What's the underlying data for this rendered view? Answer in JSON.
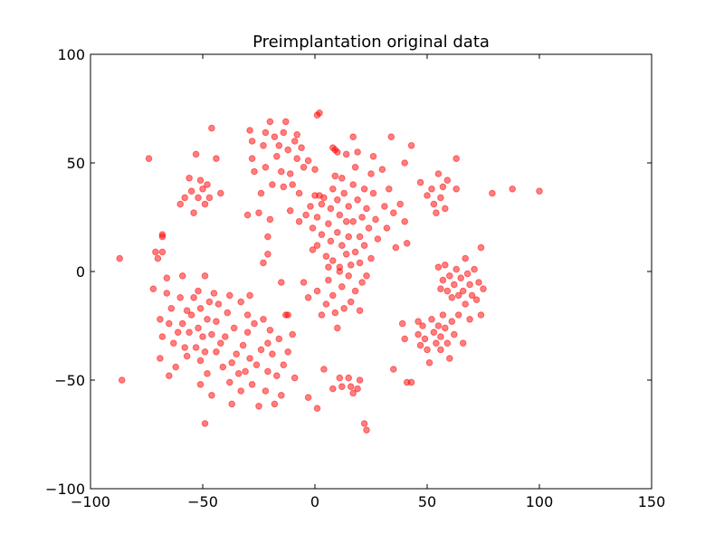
{
  "chart_data": {
    "type": "scatter",
    "title": "Preimplantation original data",
    "xlabel": "",
    "ylabel": "",
    "xlim": [
      -100,
      150
    ],
    "ylim": [
      -100,
      100
    ],
    "xticks": [
      -100,
      -50,
      0,
      50,
      100,
      150
    ],
    "yticks": [
      -100,
      -50,
      0,
      50,
      100
    ],
    "xtick_labels": [
      "−100",
      "−50",
      "0",
      "50",
      "100",
      "150"
    ],
    "ytick_labels": [
      "−100",
      "−50",
      "0",
      "50",
      "100"
    ],
    "grid": false,
    "marker_color": "#ff0000",
    "marker_opacity": 0.5,
    "points": [
      [
        -87,
        6
      ],
      [
        -86,
        -50
      ],
      [
        -74,
        52
      ],
      [
        -71,
        9
      ],
      [
        -70,
        6
      ],
      [
        -68,
        17
      ],
      [
        -68,
        16
      ],
      [
        -68,
        9
      ],
      [
        -72,
        -8
      ],
      [
        -69,
        -22
      ],
      [
        -68,
        -30
      ],
      [
        -69,
        -40
      ],
      [
        -66,
        -10
      ],
      [
        -66,
        -3
      ],
      [
        -65,
        -24
      ],
      [
        -65,
        -48
      ],
      [
        -64,
        -17
      ],
      [
        -63,
        -33
      ],
      [
        -62,
        -44
      ],
      [
        -61,
        -28
      ],
      [
        -60,
        -12
      ],
      [
        -59,
        -2
      ],
      [
        -59,
        -24
      ],
      [
        -58,
        -35
      ],
      [
        -57,
        -39
      ],
      [
        -57,
        -18
      ],
      [
        -56,
        -28
      ],
      [
        -55,
        -20
      ],
      [
        -54,
        -12
      ],
      [
        -53,
        -35
      ],
      [
        -52,
        -9
      ],
      [
        -52,
        -26
      ],
      [
        -51,
        -17
      ],
      [
        -51,
        -41
      ],
      [
        -51,
        -52
      ],
      [
        -50,
        -30
      ],
      [
        -49,
        -2
      ],
      [
        -49,
        -37
      ],
      [
        -48,
        -22
      ],
      [
        -48,
        -47
      ],
      [
        -47,
        -14
      ],
      [
        -46,
        -29
      ],
      [
        -46,
        -57
      ],
      [
        -45,
        -10
      ],
      [
        -44,
        -23
      ],
      [
        -44,
        -37
      ],
      [
        -43,
        -15
      ],
      [
        -42,
        -33
      ],
      [
        -41,
        -44
      ],
      [
        -40,
        -30
      ],
      [
        -39,
        -19
      ],
      [
        -38,
        -11
      ],
      [
        -38,
        -51
      ],
      [
        -37,
        -42
      ],
      [
        -37,
        -61
      ],
      [
        -36,
        -26
      ],
      [
        -35,
        -38
      ],
      [
        -34,
        -47
      ],
      [
        -33,
        -14
      ],
      [
        -33,
        -55
      ],
      [
        -32,
        -34
      ],
      [
        -31,
        -46
      ],
      [
        -30,
        -20
      ],
      [
        -30,
        -28
      ],
      [
        -29,
        -11
      ],
      [
        -29,
        -40
      ],
      [
        -28,
        -52
      ],
      [
        -27,
        -24
      ],
      [
        -26,
        -43
      ],
      [
        -25,
        -62
      ],
      [
        -24,
        -36
      ],
      [
        -23,
        -22
      ],
      [
        -22,
        -55
      ],
      [
        -21,
        -33
      ],
      [
        -21,
        -46
      ],
      [
        -20,
        -27
      ],
      [
        -19,
        -38
      ],
      [
        -18,
        -61
      ],
      [
        -17,
        -48
      ],
      [
        -16,
        -31
      ],
      [
        -15,
        -57
      ],
      [
        -14,
        -43
      ],
      [
        -13,
        -20
      ],
      [
        -12,
        -37
      ],
      [
        -10,
        -29
      ],
      [
        -9,
        -49
      ],
      [
        -60,
        31
      ],
      [
        -58,
        34
      ],
      [
        -56,
        43
      ],
      [
        -55,
        37
      ],
      [
        -54,
        27
      ],
      [
        -53,
        54
      ],
      [
        -52,
        34
      ],
      [
        -51,
        42
      ],
      [
        -50,
        38
      ],
      [
        -49,
        31
      ],
      [
        -48,
        40
      ],
      [
        -47,
        34
      ],
      [
        -46,
        66
      ],
      [
        -44,
        52
      ],
      [
        -42,
        36
      ],
      [
        -49,
        -70
      ],
      [
        -30,
        26
      ],
      [
        -29,
        65
      ],
      [
        -28,
        60
      ],
      [
        -27,
        46
      ],
      [
        -28,
        52
      ],
      [
        -25,
        27
      ],
      [
        -24,
        36
      ],
      [
        -23,
        58
      ],
      [
        -22,
        64
      ],
      [
        -22,
        48
      ],
      [
        -21,
        16
      ],
      [
        -21,
        8
      ],
      [
        -20,
        24
      ],
      [
        -20,
        69
      ],
      [
        -19,
        40
      ],
      [
        -18,
        62
      ],
      [
        -17,
        53
      ],
      [
        -16,
        58
      ],
      [
        -15,
        46
      ],
      [
        -14,
        39
      ],
      [
        -14,
        64
      ],
      [
        -13,
        69
      ],
      [
        -12,
        56
      ],
      [
        -11,
        28
      ],
      [
        -11,
        45
      ],
      [
        -10,
        40
      ],
      [
        -9,
        60
      ],
      [
        -8,
        63
      ],
      [
        -8,
        52
      ],
      [
        -7,
        23
      ],
      [
        -7,
        36
      ],
      [
        -6,
        57
      ],
      [
        -5,
        48
      ],
      [
        -4,
        26
      ],
      [
        -3,
        51
      ],
      [
        -2,
        30
      ],
      [
        -23,
        4
      ],
      [
        -15,
        -5
      ],
      [
        -12,
        -20
      ],
      [
        -3,
        -58
      ],
      [
        1,
        72
      ],
      [
        2,
        73
      ],
      [
        0,
        47
      ],
      [
        1,
        25
      ],
      [
        1,
        12
      ],
      [
        2,
        35
      ],
      [
        3,
        31
      ],
      [
        3,
        17
      ],
      [
        4,
        34
      ],
      [
        5,
        7
      ],
      [
        6,
        2
      ],
      [
        6,
        22
      ],
      [
        7,
        29
      ],
      [
        7,
        14
      ],
      [
        8,
        57
      ],
      [
        8,
        38
      ],
      [
        8,
        5
      ],
      [
        9,
        44
      ],
      [
        9,
        56
      ],
      [
        10,
        33
      ],
      [
        10,
        18
      ],
      [
        11,
        26
      ],
      [
        11,
        2
      ],
      [
        12,
        43
      ],
      [
        12,
        12
      ],
      [
        13,
        36
      ],
      [
        14,
        23
      ],
      [
        14,
        8
      ],
      [
        15,
        30
      ],
      [
        15,
        16
      ],
      [
        16,
        3
      ],
      [
        17,
        40
      ],
      [
        17,
        23
      ],
      [
        18,
        9
      ],
      [
        18,
        48
      ],
      [
        19,
        55
      ],
      [
        19,
        33
      ],
      [
        20,
        16
      ],
      [
        20,
        4
      ],
      [
        21,
        25
      ],
      [
        22,
        38
      ],
      [
        22,
        12
      ],
      [
        23,
        29
      ],
      [
        24,
        20
      ],
      [
        25,
        45
      ],
      [
        25,
        6
      ],
      [
        26,
        53
      ],
      [
        26,
        36
      ],
      [
        27,
        24
      ],
      [
        28,
        15
      ],
      [
        30,
        47
      ],
      [
        31,
        30
      ],
      [
        32,
        20
      ],
      [
        33,
        38
      ],
      [
        34,
        62
      ],
      [
        35,
        27
      ],
      [
        36,
        11
      ],
      [
        38,
        31
      ],
      [
        40,
        50
      ],
      [
        40,
        23
      ],
      [
        41,
        13
      ],
      [
        43,
        58
      ],
      [
        -5,
        -5
      ],
      [
        -3,
        -12
      ],
      [
        -1,
        10
      ],
      [
        1,
        -9
      ],
      [
        3,
        -20
      ],
      [
        5,
        -15
      ],
      [
        6,
        -4
      ],
      [
        8,
        -11
      ],
      [
        9,
        -19
      ],
      [
        10,
        -26
      ],
      [
        11,
        0
      ],
      [
        12,
        -7
      ],
      [
        13,
        -17
      ],
      [
        15,
        -2
      ],
      [
        16,
        -14
      ],
      [
        18,
        -9
      ],
      [
        20,
        -18
      ],
      [
        21,
        -5
      ],
      [
        23,
        -2
      ],
      [
        17,
        62
      ],
      [
        14,
        54
      ],
      [
        10,
        55
      ],
      [
        -1,
        20
      ],
      [
        0,
        35
      ],
      [
        4,
        -45
      ],
      [
        8,
        -54
      ],
      [
        11,
        -49
      ],
      [
        12,
        -53
      ],
      [
        15,
        -49
      ],
      [
        16,
        -53
      ],
      [
        17,
        -56
      ],
      [
        19,
        -54
      ],
      [
        20,
        -50
      ],
      [
        22,
        -70
      ],
      [
        23,
        -73
      ],
      [
        1,
        -63
      ],
      [
        35,
        -45
      ],
      [
        39,
        -24
      ],
      [
        40,
        -31
      ],
      [
        41,
        -51
      ],
      [
        43,
        -51
      ],
      [
        46,
        -23
      ],
      [
        46,
        -29
      ],
      [
        47,
        -34
      ],
      [
        48,
        -25
      ],
      [
        49,
        -31
      ],
      [
        50,
        -36
      ],
      [
        51,
        -42
      ],
      [
        52,
        -22
      ],
      [
        53,
        -28
      ],
      [
        54,
        -33
      ],
      [
        55,
        -25
      ],
      [
        56,
        -30
      ],
      [
        56,
        -36
      ],
      [
        57,
        -20
      ],
      [
        58,
        -26
      ],
      [
        59,
        -33
      ],
      [
        60,
        -40
      ],
      [
        61,
        -23
      ],
      [
        62,
        -29
      ],
      [
        64,
        -20
      ],
      [
        66,
        -33
      ],
      [
        69,
        -22
      ],
      [
        47,
        41
      ],
      [
        50,
        35
      ],
      [
        52,
        38
      ],
      [
        53,
        31
      ],
      [
        54,
        27
      ],
      [
        55,
        45
      ],
      [
        56,
        34
      ],
      [
        57,
        39
      ],
      [
        58,
        29
      ],
      [
        59,
        42
      ],
      [
        63,
        52
      ],
      [
        63,
        38
      ],
      [
        55,
        2
      ],
      [
        56,
        -8
      ],
      [
        57,
        -4
      ],
      [
        58,
        3
      ],
      [
        59,
        -9
      ],
      [
        60,
        -2
      ],
      [
        61,
        -12
      ],
      [
        62,
        -6
      ],
      [
        63,
        1
      ],
      [
        64,
        -11
      ],
      [
        65,
        -3
      ],
      [
        66,
        -9
      ],
      [
        67,
        6
      ],
      [
        67,
        -15
      ],
      [
        68,
        -1
      ],
      [
        69,
        -6
      ],
      [
        70,
        -11
      ],
      [
        71,
        1
      ],
      [
        72,
        -13
      ],
      [
        73,
        -5
      ],
      [
        74,
        11
      ],
      [
        74,
        -20
      ],
      [
        75,
        -8
      ],
      [
        79,
        36
      ],
      [
        88,
        38
      ],
      [
        100,
        37
      ]
    ]
  }
}
